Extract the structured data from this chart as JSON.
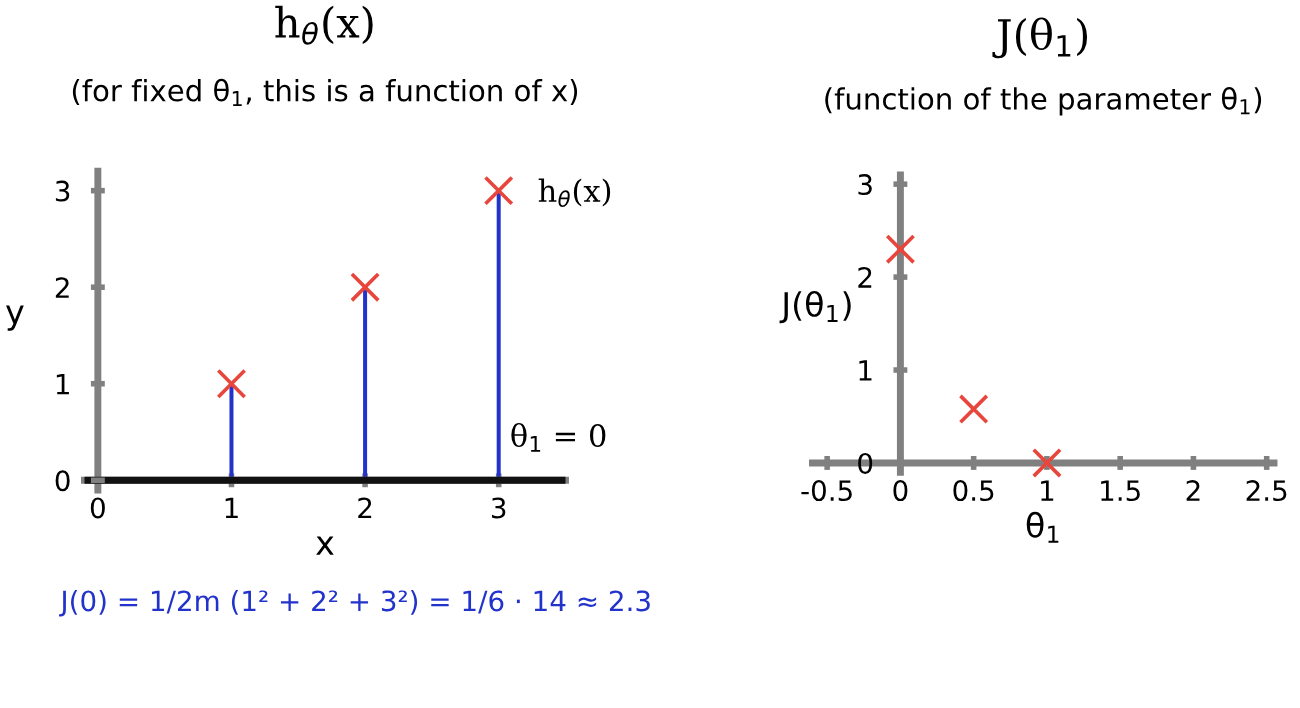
{
  "chart_data": [
    {
      "type": "scatter",
      "title": "h$_{θ}$(x)",
      "subtitle": "(for fixed θ$_{1}$, this is a function of x)",
      "xlabel": "x",
      "ylabel": "y",
      "xlim": [
        -0.1,
        3.5
      ],
      "ylim": [
        -0.1,
        3.2
      ],
      "xticks": [
        0,
        1,
        2,
        3
      ],
      "yticks": [
        0,
        1,
        2,
        3
      ],
      "grid": false,
      "legend": false,
      "series": [
        {
          "type": "bar",
          "color": "#2233cc",
          "x": [
            1,
            2,
            3
          ],
          "values": [
            1,
            2,
            3
          ]
        },
        {
          "type": "line",
          "color": "#111111",
          "x": [
            -0.1,
            3.5
          ],
          "values": [
            0,
            0
          ]
        },
        {
          "color": "#e8463c",
          "marker": "cross",
          "x": [
            1,
            2,
            3
          ],
          "values": [
            1,
            2,
            3
          ]
        }
      ],
      "annotations": [
        {
          "text": "h$_{θ}$(x)",
          "x": 3,
          "y": 3
        },
        {
          "text": "θ$_{1}$ = 0",
          "x": 3,
          "y": 0
        },
        "J(0) = 1/2m (1² + 2² + 3²) = 1/6 · 14 ≈ 2.3"
      ]
    },
    {
      "type": "scatter",
      "title": "J(θ$_{1}$)",
      "subtitle": "(function of the parameter θ$_{1}$)",
      "xlabel": "θ$_{1}$",
      "ylabel": "J(θ$_{1}$)",
      "xlim": [
        -0.6,
        2.55
      ],
      "ylim": [
        -0.1,
        3.1
      ],
      "xticks": [
        -0.5,
        0,
        0.5,
        1,
        1.5,
        2,
        2.5
      ],
      "yticks": [
        0,
        1,
        2,
        3
      ],
      "grid": false,
      "legend": false,
      "series": [
        {
          "color": "#e8463c",
          "marker": "cross",
          "x": [
            0,
            0.5,
            1
          ],
          "values": [
            2.3,
            0.58,
            0
          ]
        }
      ]
    }
  ]
}
